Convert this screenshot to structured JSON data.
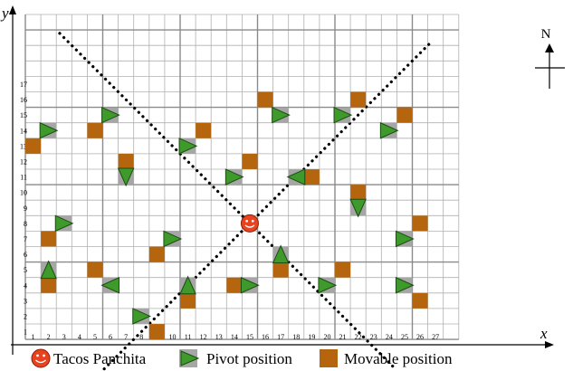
{
  "axes": {
    "x_label": "x",
    "y_label": "y",
    "x_ticks": [
      1,
      2,
      3,
      4,
      5,
      6,
      7,
      8,
      9,
      10,
      11,
      12,
      13,
      14,
      15,
      16,
      17,
      18,
      19,
      20,
      21,
      22,
      23,
      24,
      25,
      26,
      27
    ],
    "y_ticks": [
      1,
      2,
      3,
      4,
      5,
      6,
      7,
      8,
      9,
      10,
      11,
      12,
      13,
      14,
      15,
      16,
      17
    ]
  },
  "north_label": "N",
  "legend": {
    "restaurant": "Tacos Panchita",
    "pivot": "Pivot position",
    "movable": "Movable position"
  },
  "colors": {
    "restaurant": "#e8431e",
    "pivot": "#3e9a2a",
    "pivot_bg": "#a6a6a6",
    "movable": "#b5650d",
    "grid_minor": "#b0b0b0",
    "grid_major": "#8a8a8a"
  },
  "restaurant": {
    "x": 15,
    "y": 8
  },
  "movable_positions": [
    [
      1,
      13
    ],
    [
      5,
      14
    ],
    [
      12,
      14
    ],
    [
      16,
      16
    ],
    [
      22,
      16
    ],
    [
      25,
      15
    ],
    [
      7,
      12
    ],
    [
      15,
      12
    ],
    [
      19,
      11
    ],
    [
      22,
      10
    ],
    [
      26,
      8
    ],
    [
      2,
      7
    ],
    [
      9,
      6
    ],
    [
      2,
      4
    ],
    [
      5,
      5
    ],
    [
      17,
      5
    ],
    [
      21,
      5
    ],
    [
      14,
      4
    ],
    [
      11,
      3
    ],
    [
      26,
      3
    ],
    [
      9,
      1
    ]
  ],
  "pivot_positions": [
    {
      "x": 2,
      "y": 14,
      "dir": "right"
    },
    {
      "x": 6,
      "y": 15,
      "dir": "right"
    },
    {
      "x": 11,
      "y": 13,
      "dir": "right"
    },
    {
      "x": 17,
      "y": 15,
      "dir": "right"
    },
    {
      "x": 21,
      "y": 15,
      "dir": "right"
    },
    {
      "x": 24,
      "y": 14,
      "dir": "right"
    },
    {
      "x": 7,
      "y": 11,
      "dir": "down"
    },
    {
      "x": 14,
      "y": 11,
      "dir": "right"
    },
    {
      "x": 18,
      "y": 11,
      "dir": "left"
    },
    {
      "x": 22,
      "y": 9,
      "dir": "down"
    },
    {
      "x": 3,
      "y": 8,
      "dir": "right"
    },
    {
      "x": 10,
      "y": 7,
      "dir": "right"
    },
    {
      "x": 25,
      "y": 7,
      "dir": "right"
    },
    {
      "x": 17,
      "y": 6,
      "dir": "up"
    },
    {
      "x": 2,
      "y": 5,
      "dir": "up"
    },
    {
      "x": 6,
      "y": 4,
      "dir": "left"
    },
    {
      "x": 11,
      "y": 4,
      "dir": "up"
    },
    {
      "x": 15,
      "y": 4,
      "dir": "right"
    },
    {
      "x": 20,
      "y": 4,
      "dir": "right"
    },
    {
      "x": 25,
      "y": 4,
      "dir": "right"
    },
    {
      "x": 8,
      "y": 2,
      "dir": "right"
    }
  ]
}
